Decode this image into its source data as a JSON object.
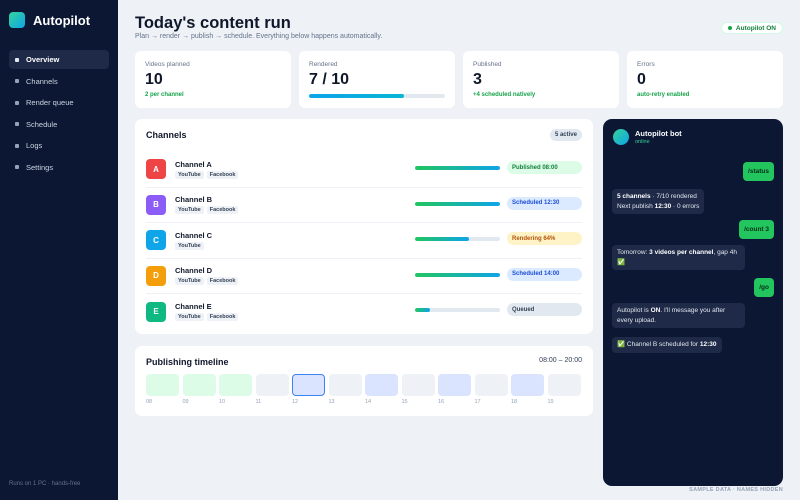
{
  "app": {
    "name": "Autopilot"
  },
  "sidebar": {
    "items": [
      {
        "label": "Overview",
        "active": true
      },
      {
        "label": "Channels"
      },
      {
        "label": "Render queue"
      },
      {
        "label": "Schedule"
      },
      {
        "label": "Logs"
      },
      {
        "label": "Settings"
      }
    ],
    "footer": "Runs on 1 PC · hands-free"
  },
  "header": {
    "title": "Today's content run",
    "subtitle": "Plan → render → publish → schedule. Everything below happens automatically.",
    "status": "Autopilot ON"
  },
  "stats": [
    {
      "label": "Videos planned",
      "value": "10",
      "note": "2 per channel"
    },
    {
      "label": "Rendered",
      "value": "7 / 10",
      "progress": 0.7
    },
    {
      "label": "Published",
      "value": "3",
      "note": "+4 scheduled natively"
    },
    {
      "label": "Errors",
      "value": "0",
      "note": "auto-retry enabled"
    }
  ],
  "channels": {
    "title": "Channels",
    "active_count": "5 active",
    "rows": [
      {
        "initial": "A",
        "name": "Channel A",
        "color": "#ef4444",
        "tags": [
          "YouTube",
          "Facebook"
        ],
        "progress": 1.0,
        "status": "Published 08:00",
        "status_kind": "published"
      },
      {
        "initial": "B",
        "name": "Channel B",
        "color": "#8b5cf6",
        "tags": [
          "YouTube",
          "Facebook"
        ],
        "progress": 1.0,
        "status": "Scheduled 12:30",
        "status_kind": "scheduled"
      },
      {
        "initial": "C",
        "name": "Channel C",
        "color": "#0ea5e9",
        "tags": [
          "YouTube"
        ],
        "progress": 0.64,
        "status": "Rendering 64%",
        "status_kind": "rendering"
      },
      {
        "initial": "D",
        "name": "Channel D",
        "color": "#f59e0b",
        "tags": [
          "YouTube",
          "Facebook"
        ],
        "progress": 1.0,
        "status": "Scheduled 14:00",
        "status_kind": "scheduled"
      },
      {
        "initial": "E",
        "name": "Channel E",
        "color": "#10b981",
        "tags": [
          "YouTube",
          "Facebook"
        ],
        "progress": 0.18,
        "status": "Queued",
        "status_kind": "queued"
      }
    ]
  },
  "timeline": {
    "title": "Publishing timeline",
    "range": "08:00 – 20:00",
    "slots": [
      {
        "label": "08",
        "state": "published"
      },
      {
        "label": "09",
        "state": "published"
      },
      {
        "label": "10",
        "state": "published"
      },
      {
        "label": "11",
        "state": "empty"
      },
      {
        "label": "12",
        "state": "current"
      },
      {
        "label": "13",
        "state": "empty"
      },
      {
        "label": "14",
        "state": "scheduled"
      },
      {
        "label": "15",
        "state": "empty"
      },
      {
        "label": "16",
        "state": "scheduled"
      },
      {
        "label": "17",
        "state": "empty"
      },
      {
        "label": "18",
        "state": "scheduled"
      },
      {
        "label": "19",
        "state": "empty"
      }
    ]
  },
  "bot": {
    "name": "Autopilot bot",
    "status": "online",
    "messages": [
      {
        "from": "user",
        "text": "/status"
      },
      {
        "from": "bot",
        "parts": [
          {
            "b": "5 channels"
          },
          {
            "t": " · 7/10 rendered"
          },
          {
            "br": true
          },
          {
            "t": "Next publish "
          },
          {
            "b": "12:30"
          },
          {
            "t": " · 0 errors"
          }
        ]
      },
      {
        "from": "user",
        "text": "/count 3"
      },
      {
        "from": "bot",
        "parts": [
          {
            "t": "Tomorrow: "
          },
          {
            "b": "3 videos per channel"
          },
          {
            "t": ", gap 4h ✅"
          }
        ]
      },
      {
        "from": "user",
        "text": "/go"
      },
      {
        "from": "bot",
        "parts": [
          {
            "t": "Autopilot is "
          },
          {
            "b": "ON"
          },
          {
            "t": ". I'll message you after every upload."
          }
        ]
      },
      {
        "from": "bot",
        "parts": [
          {
            "t": "✅ Channel B scheduled for "
          },
          {
            "b": "12:30"
          }
        ]
      }
    ]
  },
  "footer_note": "SAMPLE DATA · NAMES HIDDEN",
  "colors": {
    "sidebar_bg": "#0b1733",
    "accent_green": "#22c55e",
    "accent_blue": "#0ea5e9",
    "page_bg": "#eef1f6"
  }
}
